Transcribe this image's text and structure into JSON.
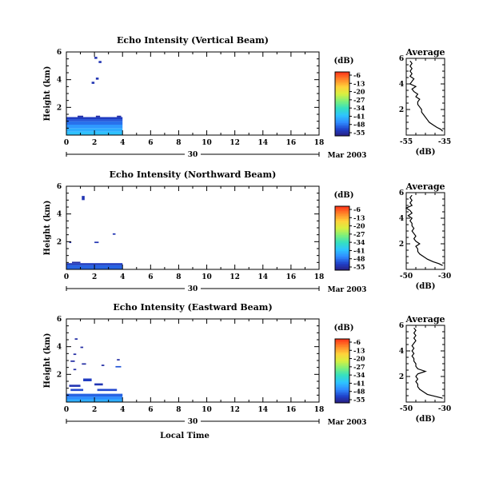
{
  "panels": [
    {
      "title": "Echo Intensity (Vertical Beam)",
      "avg_title": "Average",
      "avg_ticks": [
        "-55",
        "-35"
      ],
      "avg_range": [
        -55,
        -35
      ],
      "avg_profile": [
        [
          0.3,
          -36
        ],
        [
          0.45,
          -37
        ],
        [
          0.6,
          -39
        ],
        [
          0.8,
          -41
        ],
        [
          1.0,
          -43
        ],
        [
          1.2,
          -44
        ],
        [
          1.4,
          -45
        ],
        [
          1.6,
          -46
        ],
        [
          1.8,
          -47
        ],
        [
          2.0,
          -47
        ],
        [
          2.2,
          -48
        ],
        [
          2.4,
          -49
        ],
        [
          2.6,
          -49
        ],
        [
          2.8,
          -48
        ],
        [
          3.0,
          -50
        ],
        [
          3.2,
          -49
        ],
        [
          3.4,
          -51
        ],
        [
          3.6,
          -52
        ],
        [
          3.8,
          -50
        ],
        [
          4.0,
          -53
        ],
        [
          4.2,
          -52
        ],
        [
          4.4,
          -51
        ],
        [
          4.6,
          -53
        ],
        [
          4.8,
          -52
        ],
        [
          5.0,
          -53
        ],
        [
          5.2,
          -52
        ],
        [
          5.4,
          -53
        ],
        [
          5.6,
          -52
        ],
        [
          5.8,
          -53
        ]
      ],
      "blocks": [
        [
          0,
          4,
          0,
          0.25,
          -39
        ],
        [
          0,
          4,
          0.25,
          0.5,
          -41
        ],
        [
          0,
          4,
          0.5,
          0.75,
          -43
        ],
        [
          0,
          4,
          0.75,
          1.0,
          -46
        ],
        [
          0,
          4,
          1.0,
          1.15,
          -48
        ],
        [
          0,
          4,
          1.15,
          1.3,
          -50
        ],
        [
          0.8,
          1.2,
          1.3,
          1.4,
          -52
        ],
        [
          2.1,
          2.4,
          1.3,
          1.4,
          -52
        ],
        [
          3.6,
          3.9,
          1.3,
          1.4,
          -52
        ],
        [
          1.8,
          2.0,
          3.7,
          3.85,
          -51
        ],
        [
          2.1,
          2.3,
          4.0,
          4.15,
          -51
        ],
        [
          2.3,
          2.5,
          5.2,
          5.35,
          -51
        ],
        [
          2.0,
          2.2,
          5.5,
          5.65,
          -51
        ]
      ]
    },
    {
      "title": "Echo Intensity (Northward Beam)",
      "avg_title": "Average",
      "avg_ticks": [
        "-50",
        "-30"
      ],
      "avg_range": [
        -50,
        -30
      ],
      "avg_profile": [
        [
          0.3,
          -31
        ],
        [
          0.45,
          -33
        ],
        [
          0.6,
          -36
        ],
        [
          0.8,
          -39
        ],
        [
          1.0,
          -41
        ],
        [
          1.2,
          -43
        ],
        [
          1.4,
          -44
        ],
        [
          1.6,
          -44
        ],
        [
          1.8,
          -45
        ],
        [
          2.0,
          -43
        ],
        [
          2.2,
          -45
        ],
        [
          2.4,
          -46
        ],
        [
          2.6,
          -45
        ],
        [
          2.8,
          -46
        ],
        [
          3.0,
          -47
        ],
        [
          3.2,
          -46
        ],
        [
          3.4,
          -47
        ],
        [
          3.6,
          -47
        ],
        [
          3.8,
          -48
        ],
        [
          4.0,
          -47
        ],
        [
          4.2,
          -49
        ],
        [
          4.4,
          -47
        ],
        [
          4.6,
          -48
        ],
        [
          4.8,
          -50
        ],
        [
          5.0,
          -47
        ],
        [
          5.2,
          -48
        ],
        [
          5.4,
          -47
        ],
        [
          5.6,
          -48
        ],
        [
          5.8,
          -47
        ]
      ],
      "blocks": [
        [
          0,
          4,
          0,
          0.3,
          -47
        ],
        [
          0,
          4,
          0.3,
          0.45,
          -50
        ],
        [
          0.4,
          1.0,
          0.45,
          0.55,
          -52
        ],
        [
          2.0,
          2.3,
          1.9,
          2.0,
          -51
        ],
        [
          3.3,
          3.5,
          2.5,
          2.6,
          -51
        ],
        [
          1.1,
          1.3,
          5.0,
          5.3,
          -51
        ],
        [
          0.2,
          0.35,
          1.9,
          2.0,
          -52
        ]
      ]
    },
    {
      "title": "Echo Intensity (Eastward Beam)",
      "avg_title": "Average",
      "avg_ticks": [
        "-50",
        "-30"
      ],
      "avg_range": [
        -50,
        -30
      ],
      "avg_profile": [
        [
          0.3,
          -31
        ],
        [
          0.45,
          -35
        ],
        [
          0.6,
          -39
        ],
        [
          0.8,
          -41
        ],
        [
          1.0,
          -43
        ],
        [
          1.2,
          -44
        ],
        [
          1.4,
          -44
        ],
        [
          1.6,
          -45
        ],
        [
          1.8,
          -44
        ],
        [
          2.0,
          -45
        ],
        [
          2.2,
          -44
        ],
        [
          2.4,
          -40
        ],
        [
          2.6,
          -44
        ],
        [
          2.8,
          -45
        ],
        [
          3.0,
          -45
        ],
        [
          3.2,
          -46
        ],
        [
          3.4,
          -46
        ],
        [
          3.6,
          -47
        ],
        [
          3.8,
          -46
        ],
        [
          4.0,
          -47
        ],
        [
          4.2,
          -46
        ],
        [
          4.4,
          -47
        ],
        [
          4.6,
          -46
        ],
        [
          4.8,
          -45
        ],
        [
          5.0,
          -46
        ],
        [
          5.2,
          -45
        ],
        [
          5.4,
          -46
        ],
        [
          5.6,
          -45
        ],
        [
          5.8,
          -46
        ]
      ],
      "blocks": [
        [
          0,
          4,
          0,
          0.2,
          -41
        ],
        [
          0,
          4,
          0.2,
          0.4,
          -44
        ],
        [
          0,
          4,
          0.4,
          0.6,
          -47
        ],
        [
          0.3,
          1.2,
          0.8,
          0.95,
          -49
        ],
        [
          2.2,
          3.6,
          0.8,
          0.95,
          -49
        ],
        [
          0.2,
          1.0,
          1.1,
          1.25,
          -51
        ],
        [
          2.0,
          2.6,
          1.2,
          1.35,
          -51
        ],
        [
          1.2,
          1.8,
          1.5,
          1.7,
          -50
        ],
        [
          0.5,
          0.7,
          2.3,
          2.4,
          -52
        ],
        [
          3.5,
          3.9,
          2.5,
          2.6,
          -48
        ],
        [
          0.3,
          0.6,
          2.9,
          3.0,
          -52
        ],
        [
          1.1,
          1.4,
          2.7,
          2.8,
          -52
        ],
        [
          3.6,
          3.8,
          3.0,
          3.1,
          -52
        ],
        [
          0.5,
          0.7,
          3.4,
          3.5,
          -52
        ],
        [
          1.0,
          1.2,
          3.9,
          4.0,
          -52
        ],
        [
          0.6,
          0.8,
          4.5,
          4.6,
          -52
        ],
        [
          2.5,
          2.7,
          2.6,
          2.7,
          -52
        ]
      ]
    }
  ],
  "chart_data": {
    "type": "heatmap",
    "x_ticks": [
      "0",
      "2",
      "4",
      "6",
      "8",
      "10",
      "12",
      "14",
      "16",
      "18"
    ],
    "xlim": [
      0,
      18
    ],
    "y_ticks": [
      "2",
      "4",
      "6"
    ],
    "ylim": [
      0,
      6
    ],
    "ylabel": "Height (km)",
    "date_day": "30",
    "date_month_year": "Mar 2003",
    "xlabel": "Local Time",
    "avg_xlabel": "(dB)",
    "colorbar": {
      "label": "(dB)",
      "ticks": [
        "-6",
        "-13",
        "-20",
        "-27",
        "-34",
        "-41",
        "-48",
        "-55"
      ],
      "range": [
        -55,
        -6
      ],
      "colors": [
        "#2a1a78",
        "#1f3fc8",
        "#2f8cff",
        "#2ec5ff",
        "#35e0c0",
        "#7ef07a",
        "#d8f040",
        "#ffd23a",
        "#ff8a2a",
        "#ff3a1a"
      ]
    },
    "panels_ref": "panels"
  }
}
